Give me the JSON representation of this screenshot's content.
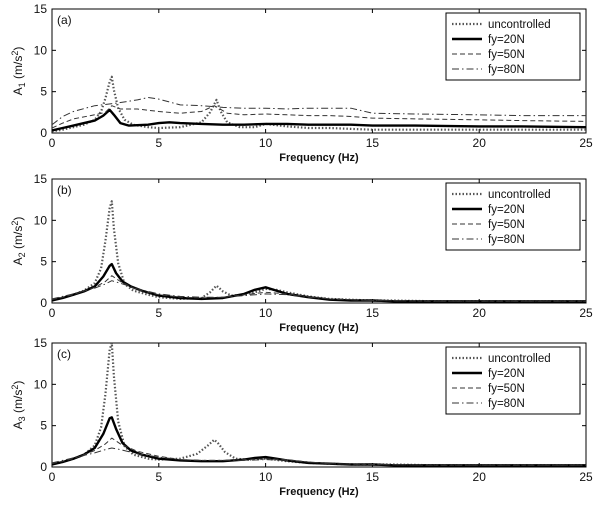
{
  "chart_data": [
    {
      "type": "line",
      "panel_label": "(a)",
      "xlabel": "Frequency (Hz)",
      "ylabel": "A",
      "ylabel_sub": "1",
      "ylabel_unit": "(m/s",
      "ylabel_unit_sup": "2",
      "ylabel_unit_close": ")",
      "xlim": [
        0,
        25
      ],
      "ylim": [
        0,
        15
      ],
      "xticks": [
        "0",
        "5",
        "10",
        "15",
        "20",
        "25"
      ],
      "yticks": [
        "0",
        "5",
        "10",
        "15"
      ],
      "legend_position": "top-right",
      "series": [
        {
          "name": "uncontrolled",
          "x": [
            0,
            0.5,
            1,
            1.5,
            2,
            2.3,
            2.5,
            2.7,
            2.8,
            2.9,
            3.1,
            3.4,
            3.8,
            4.5,
            5,
            6,
            7,
            7.4,
            7.7,
            7.9,
            8.2,
            8.8,
            9.5,
            10,
            11,
            12,
            13,
            14,
            15,
            16,
            18,
            20,
            22,
            25
          ],
          "y": [
            0.2,
            0.4,
            0.7,
            1.0,
            1.6,
            2.6,
            4.2,
            6.2,
            6.8,
            5.2,
            3.0,
            1.6,
            1.0,
            0.7,
            0.6,
            0.7,
            1.3,
            2.5,
            4.0,
            2.6,
            1.3,
            0.7,
            0.7,
            1.1,
            0.8,
            0.6,
            0.6,
            0.5,
            0.4,
            0.4,
            0.4,
            0.4,
            0.4,
            0.4
          ]
        },
        {
          "name": "fy=20N",
          "x": [
            0,
            0.5,
            1,
            1.5,
            2,
            2.4,
            2.7,
            2.9,
            3.2,
            3.6,
            4.5,
            5,
            5.5,
            6,
            7,
            8,
            9,
            10,
            11,
            12,
            13,
            14,
            15,
            17,
            20,
            22,
            25
          ],
          "y": [
            0.3,
            0.6,
            0.9,
            1.2,
            1.5,
            2.1,
            2.8,
            2.2,
            1.2,
            0.9,
            1.0,
            1.2,
            1.3,
            1.2,
            1.1,
            1.0,
            1.0,
            1.1,
            1.1,
            1.0,
            1.0,
            1.0,
            0.9,
            0.9,
            0.8,
            0.8,
            0.7
          ]
        },
        {
          "name": "fy=50N",
          "x": [
            0,
            0.5,
            1,
            2,
            2.5,
            2.8,
            3.2,
            4,
            5,
            6,
            7,
            7.6,
            8.2,
            9,
            10,
            11,
            12,
            13,
            14,
            15,
            17,
            20,
            22,
            25
          ],
          "y": [
            0.6,
            1.2,
            1.7,
            2.2,
            2.5,
            3.3,
            2.9,
            2.9,
            2.6,
            2.4,
            2.6,
            3.3,
            2.4,
            2.2,
            2.3,
            2.2,
            2.1,
            2.1,
            2.0,
            1.8,
            1.7,
            1.6,
            1.5,
            1.4
          ]
        },
        {
          "name": "fy=80N",
          "x": [
            0,
            0.5,
            1,
            2,
            3,
            4,
            4.5,
            5,
            6,
            7,
            8,
            9,
            10,
            11,
            12,
            13,
            14,
            14.5,
            15,
            17,
            20,
            22,
            25
          ],
          "y": [
            1.0,
            2.0,
            2.6,
            3.3,
            3.6,
            4.0,
            4.3,
            4.1,
            3.4,
            3.3,
            3.1,
            3.0,
            3.0,
            2.9,
            3.0,
            3.0,
            3.0,
            2.7,
            2.4,
            2.3,
            2.2,
            2.1,
            2.1
          ]
        }
      ]
    },
    {
      "type": "line",
      "panel_label": "(b)",
      "xlabel": "Frequency (Hz)",
      "ylabel": "A",
      "ylabel_sub": "2",
      "ylabel_unit": "(m/s",
      "ylabel_unit_sup": "2",
      "ylabel_unit_close": ")",
      "xlim": [
        0,
        25
      ],
      "ylim": [
        0,
        15
      ],
      "xticks": [
        "0",
        "5",
        "10",
        "15",
        "20",
        "25"
      ],
      "yticks": [
        "0",
        "5",
        "10",
        "15"
      ],
      "legend_position": "top-right",
      "series": [
        {
          "name": "uncontrolled",
          "x": [
            0,
            0.5,
            1,
            1.5,
            2,
            2.3,
            2.5,
            2.7,
            2.8,
            2.9,
            3.1,
            3.4,
            3.8,
            4.5,
            5,
            6,
            7,
            7.4,
            7.7,
            8,
            8.4,
            9,
            9.5,
            10,
            10.5,
            11,
            12,
            13,
            14,
            15,
            16,
            18,
            20,
            22,
            25
          ],
          "y": [
            0.3,
            0.7,
            1.0,
            1.5,
            2.4,
            4.2,
            7.5,
            11.5,
            12.3,
            9.0,
            4.8,
            2.3,
            1.5,
            1.0,
            0.7,
            0.5,
            0.6,
            1.3,
            2.1,
            1.4,
            0.9,
            1.0,
            1.3,
            1.7,
            1.6,
            1.3,
            0.8,
            0.5,
            0.4,
            0.3,
            0.3,
            0.2,
            0.2,
            0.2,
            0.2
          ]
        },
        {
          "name": "fy=20N",
          "x": [
            0,
            0.5,
            1,
            1.5,
            2,
            2.4,
            2.7,
            2.8,
            3.0,
            3.3,
            3.7,
            4.2,
            5,
            6,
            7,
            8,
            9,
            9.5,
            10,
            10.5,
            11,
            12,
            13,
            14,
            15,
            16,
            18,
            20,
            22,
            25
          ],
          "y": [
            0.3,
            0.6,
            1.0,
            1.4,
            2.0,
            3.2,
            4.5,
            4.7,
            3.6,
            2.6,
            2.0,
            1.5,
            0.9,
            0.6,
            0.5,
            0.6,
            1.1,
            1.6,
            1.9,
            1.5,
            1.1,
            0.7,
            0.4,
            0.3,
            0.3,
            0.2,
            0.2,
            0.2,
            0.2,
            0.2
          ]
        },
        {
          "name": "fy=50N",
          "x": [
            0,
            1,
            2,
            2.5,
            2.8,
            3.2,
            4,
            5,
            6,
            7,
            8,
            9,
            10,
            11,
            12,
            13,
            14,
            15,
            18,
            20,
            25
          ],
          "y": [
            0.4,
            1.0,
            1.9,
            2.6,
            3.3,
            2.6,
            1.6,
            1.0,
            0.7,
            0.6,
            0.7,
            1.0,
            1.3,
            1.1,
            0.8,
            0.5,
            0.4,
            0.3,
            0.2,
            0.2,
            0.2
          ]
        },
        {
          "name": "fy=80N",
          "x": [
            0,
            1,
            2,
            2.5,
            2.8,
            3.2,
            4,
            5,
            6,
            7,
            8,
            9,
            10,
            11,
            12,
            13,
            14,
            15,
            18,
            20,
            25
          ],
          "y": [
            0.5,
            1.1,
            1.8,
            2.3,
            2.7,
            2.4,
            1.7,
            1.1,
            0.8,
            0.7,
            0.7,
            0.9,
            1.1,
            1.0,
            0.7,
            0.5,
            0.4,
            0.3,
            0.2,
            0.2,
            0.2
          ]
        }
      ]
    },
    {
      "type": "line",
      "panel_label": "(c)",
      "xlabel": "Frequency (Hz)",
      "ylabel": "A",
      "ylabel_sub": "3",
      "ylabel_unit": "(m/s",
      "ylabel_unit_sup": "2",
      "ylabel_unit_close": ")",
      "xlim": [
        0,
        25
      ],
      "ylim": [
        0,
        15
      ],
      "xticks": [
        "0",
        "5",
        "10",
        "15",
        "20",
        "25"
      ],
      "yticks": [
        "0",
        "5",
        "10",
        "15"
      ],
      "legend_position": "top-right",
      "series": [
        {
          "name": "uncontrolled",
          "x": [
            0,
            0.5,
            1,
            1.5,
            2,
            2.3,
            2.5,
            2.7,
            2.8,
            2.9,
            3.1,
            3.4,
            3.8,
            4.5,
            5,
            6,
            6.8,
            7.3,
            7.6,
            7.8,
            8.1,
            8.6,
            9.2,
            10,
            11,
            12,
            13,
            14,
            15,
            16,
            18,
            20,
            22,
            25
          ],
          "y": [
            0.3,
            0.6,
            1.0,
            1.5,
            2.6,
            4.8,
            8.8,
            14.2,
            15.0,
            11.0,
            5.5,
            2.5,
            1.5,
            1.0,
            0.9,
            1.0,
            1.6,
            2.6,
            3.3,
            2.8,
            1.8,
            1.0,
            0.9,
            1.0,
            0.7,
            0.5,
            0.4,
            0.3,
            0.3,
            0.3,
            0.2,
            0.2,
            0.2,
            0.2
          ]
        },
        {
          "name": "fy=20N",
          "x": [
            0,
            0.5,
            1,
            1.5,
            2,
            2.4,
            2.7,
            2.8,
            3.0,
            3.3,
            3.7,
            4.2,
            5,
            6,
            7,
            8,
            9,
            9.5,
            10,
            10.5,
            11,
            12,
            13,
            14,
            15,
            16,
            18,
            20,
            22,
            25
          ],
          "y": [
            0.3,
            0.6,
            1.0,
            1.5,
            2.3,
            4.0,
            5.9,
            6.0,
            4.6,
            2.9,
            2.0,
            1.5,
            1.0,
            0.8,
            0.7,
            0.7,
            0.9,
            1.1,
            1.2,
            1.0,
            0.8,
            0.5,
            0.4,
            0.3,
            0.3,
            0.2,
            0.2,
            0.2,
            0.2,
            0.2
          ]
        },
        {
          "name": "fy=50N",
          "x": [
            0,
            1,
            2,
            2.5,
            2.8,
            3.2,
            4,
            5,
            6,
            7,
            8,
            9,
            10,
            11,
            12,
            13,
            15,
            18,
            20,
            25
          ],
          "y": [
            0.4,
            1.0,
            2.0,
            2.8,
            3.5,
            2.8,
            1.9,
            1.3,
            0.9,
            0.8,
            0.8,
            0.9,
            1.0,
            0.9,
            0.6,
            0.4,
            0.3,
            0.2,
            0.2,
            0.2
          ]
        },
        {
          "name": "fy=80N",
          "x": [
            0,
            1,
            2,
            2.5,
            2.8,
            3.2,
            4,
            5,
            6,
            7,
            8,
            9,
            10,
            11,
            12,
            13,
            15,
            18,
            20,
            25
          ],
          "y": [
            0.5,
            1.1,
            1.7,
            2.1,
            2.3,
            2.1,
            1.6,
            1.2,
            0.9,
            0.8,
            0.8,
            0.8,
            0.9,
            0.8,
            0.6,
            0.4,
            0.3,
            0.2,
            0.2,
            0.2
          ]
        }
      ]
    }
  ]
}
